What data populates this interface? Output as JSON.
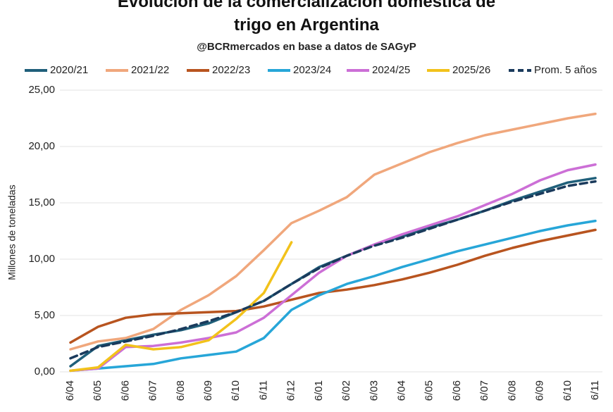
{
  "chart_data": {
    "type": "line",
    "title": "Evolución de la comercialización doméstica de trigo en Argentina",
    "subtitle": "@BCRmercados en base a datos de SAGyP",
    "y_label": "Millones de toneladas",
    "categories": [
      "6/04",
      "6/05",
      "6/06",
      "6/07",
      "6/08",
      "6/09",
      "6/10",
      "6/11",
      "6/12",
      "6/01",
      "6/02",
      "6/03",
      "6/04",
      "6/05",
      "6/06",
      "6/07",
      "6/08",
      "6/09",
      "6/10",
      "6/11"
    ],
    "ylim": [
      0,
      25
    ],
    "yticks": [
      {
        "value": 0,
        "label": "0,00"
      },
      {
        "value": 5,
        "label": "5,00"
      },
      {
        "value": 10,
        "label": "10,00"
      },
      {
        "value": 15,
        "label": "15,00"
      },
      {
        "value": 20,
        "label": "20,00"
      },
      {
        "value": 25,
        "label": "25,00"
      }
    ],
    "grid": true,
    "legend": "top",
    "series": [
      {
        "name": "2020/21",
        "color": "#1f5f7a",
        "values": [
          0.5,
          2.3,
          2.8,
          3.3,
          3.7,
          4.3,
          5.3,
          6.3,
          7.8,
          9.3,
          10.3,
          11.3,
          12.0,
          12.8,
          13.5,
          14.3,
          15.2,
          16.0,
          16.8,
          17.2
        ]
      },
      {
        "name": "2021/22",
        "color": "#f0a77c",
        "values": [
          2.0,
          2.7,
          3.0,
          3.8,
          5.5,
          6.8,
          8.5,
          10.8,
          13.2,
          14.3,
          15.5,
          17.5,
          18.5,
          19.5,
          20.3,
          21.0,
          21.5,
          22.0,
          22.5,
          22.9
        ]
      },
      {
        "name": "2022/23",
        "color": "#b8541f",
        "values": [
          2.6,
          4.0,
          4.8,
          5.1,
          5.2,
          5.3,
          5.4,
          5.8,
          6.4,
          7.0,
          7.3,
          7.7,
          8.2,
          8.8,
          9.5,
          10.3,
          11.0,
          11.6,
          12.1,
          12.6
        ]
      },
      {
        "name": "2023/24",
        "color": "#27a6d8",
        "values": [
          0.1,
          0.3,
          0.5,
          0.7,
          1.2,
          1.5,
          1.8,
          3.0,
          5.5,
          6.8,
          7.8,
          8.5,
          9.3,
          10.0,
          10.7,
          11.3,
          11.9,
          12.5,
          13.0,
          13.4
        ]
      },
      {
        "name": "2024/25",
        "color": "#cc6fd6",
        "values": [
          0.1,
          0.3,
          2.2,
          2.3,
          2.6,
          3.0,
          3.5,
          4.8,
          6.8,
          8.8,
          10.3,
          11.3,
          12.2,
          13.0,
          13.8,
          14.8,
          15.8,
          17.0,
          17.9,
          18.4
        ]
      },
      {
        "name": "2025/26",
        "color": "#f2c21b",
        "values": [
          0.1,
          0.4,
          2.4,
          2.0,
          2.2,
          2.8,
          4.7,
          7.0,
          11.5,
          null,
          null,
          null,
          null,
          null,
          null,
          null,
          null,
          null,
          null,
          null
        ]
      },
      {
        "name": "Prom. 5 años",
        "color": "#1a3a5c",
        "dashed": true,
        "values": [
          1.2,
          2.2,
          2.7,
          3.2,
          3.8,
          4.5,
          5.3,
          6.3,
          7.8,
          9.2,
          10.3,
          11.2,
          11.9,
          12.7,
          13.5,
          14.3,
          15.1,
          15.8,
          16.5,
          16.9
        ]
      }
    ]
  }
}
